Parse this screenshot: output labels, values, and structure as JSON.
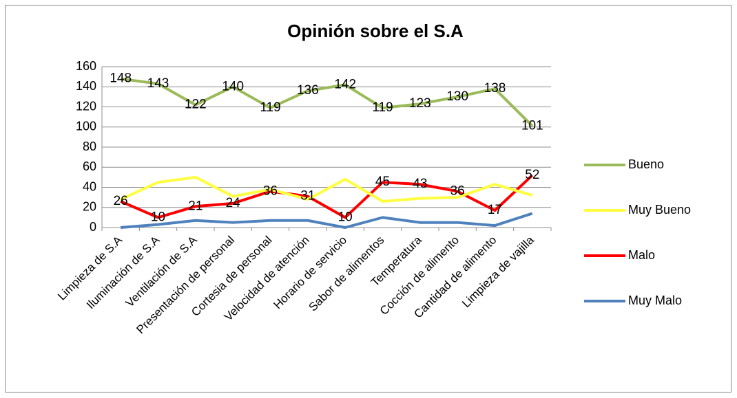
{
  "chart_data": {
    "type": "line",
    "title": "Opinión sobre el S.A",
    "categories": [
      "Limpieza de S.A",
      "Iluminación de S.A",
      "Ventilación de S.A",
      "Presentación de personal",
      "Cortesia de personal",
      "Velocidad de atención",
      "Horario de servicio",
      "Sabor de alimentos",
      "Temperatura",
      "Cocción de alimento",
      "Cantidad de alimento",
      "Limpieza de vajilla"
    ],
    "series": [
      {
        "name": "Bueno",
        "color": "#9bbb59",
        "data_labels": true,
        "values": [
          148,
          143,
          122,
          140,
          119,
          136,
          142,
          119,
          123,
          130,
          138,
          101
        ]
      },
      {
        "name": "Muy Bueno",
        "color": "#ffff40",
        "data_labels": false,
        "values": [
          28,
          45,
          50,
          31,
          38,
          28,
          48,
          26,
          29,
          30,
          43,
          32
        ]
      },
      {
        "name": "Malo",
        "color": "#ff0000",
        "data_labels": true,
        "values": [
          26,
          10,
          21,
          24,
          36,
          31,
          10,
          45,
          43,
          36,
          17,
          52
        ]
      },
      {
        "name": "Muy Malo",
        "color": "#4f81bd",
        "data_labels": false,
        "values": [
          0,
          3,
          7,
          5,
          7,
          7,
          0,
          10,
          5,
          5,
          2,
          14
        ]
      }
    ],
    "ylim": [
      0,
      160
    ],
    "yticks": [
      0,
      20,
      40,
      60,
      80,
      100,
      120,
      140,
      160
    ],
    "grid": true,
    "legend": "right"
  }
}
